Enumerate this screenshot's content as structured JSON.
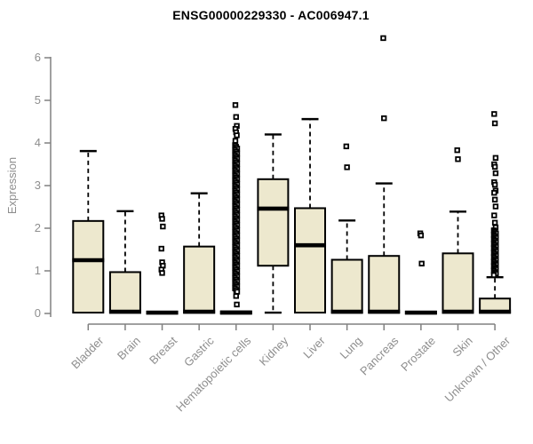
{
  "page": {
    "background": "#ffffff"
  },
  "chart_data": {
    "type": "boxplot",
    "title": "ENSG00000229330 - AC006947.1",
    "ylabel": "Expression",
    "xlabel": "",
    "ylim": [
      0,
      6.5
    ],
    "yticks": [
      0,
      1,
      2,
      3,
      4,
      5,
      6
    ],
    "grid": false,
    "legend": false,
    "colors": {
      "box_fill": "#EDE8CE",
      "box_stroke": "#000000",
      "median": "#000000",
      "whisker": "#000000",
      "outlier": "#000000",
      "axis": "#808080",
      "tick_label": "#8e8e8e",
      "title": "#000000"
    },
    "categories": [
      "Bladder",
      "Brain",
      "Breast",
      "Gastric",
      "Hematopoietic cells",
      "Kidney",
      "Liver",
      "Lung",
      "Pancreas",
      "Prostate",
      "Skin",
      "Unknown / Other"
    ],
    "series": [
      {
        "name": "Bladder",
        "whisker_low": 0.02,
        "q1": 0.02,
        "median": 1.25,
        "q3": 2.17,
        "whisker_high": 3.81,
        "outliers": []
      },
      {
        "name": "Brain",
        "whisker_low": 0.02,
        "q1": 0.02,
        "median": 0.04,
        "q3": 0.97,
        "whisker_high": 2.4,
        "outliers": []
      },
      {
        "name": "Breast",
        "whisker_low": 0.0,
        "q1": 0.0,
        "median": 0.02,
        "q3": 0.04,
        "whisker_high": 0.04,
        "outliers": [
          2.3,
          2.22,
          2.04,
          1.52,
          1.2,
          1.12,
          1.03,
          0.95
        ]
      },
      {
        "name": "Gastric",
        "whisker_low": 0.02,
        "q1": 0.02,
        "median": 0.04,
        "q3": 1.57,
        "whisker_high": 2.82,
        "outliers": []
      },
      {
        "name": "Hematopoietic cells",
        "whisker_low": 0.0,
        "q1": 0.0,
        "median": 0.02,
        "q3": 0.05,
        "whisker_high": 0.05,
        "outliers": [
          4.89,
          4.61,
          4.4,
          4.33,
          4.25,
          4.18,
          4.05,
          0.41,
          0.21
        ],
        "outlier_strip": {
          "min": 0.5,
          "max": 3.95,
          "step": 0.04
        }
      },
      {
        "name": "Kidney",
        "whisker_low": 0.02,
        "q1": 1.12,
        "median": 2.46,
        "q3": 3.15,
        "whisker_high": 4.2,
        "outliers": []
      },
      {
        "name": "Liver",
        "whisker_low": 0.02,
        "q1": 0.02,
        "median": 1.6,
        "q3": 2.47,
        "whisker_high": 4.56,
        "outliers": []
      },
      {
        "name": "Lung",
        "whisker_low": 0.02,
        "q1": 0.02,
        "median": 0.04,
        "q3": 1.26,
        "whisker_high": 2.18,
        "outliers": [
          3.92,
          3.43
        ]
      },
      {
        "name": "Pancreas",
        "whisker_low": 0.02,
        "q1": 0.02,
        "median": 0.04,
        "q3": 1.35,
        "whisker_high": 3.05,
        "outliers": [
          6.46,
          4.58
        ]
      },
      {
        "name": "Prostate",
        "whisker_low": 0.0,
        "q1": 0.0,
        "median": 0.02,
        "q3": 0.04,
        "whisker_high": 0.04,
        "outliers": [
          1.88,
          1.83,
          1.17
        ]
      },
      {
        "name": "Skin",
        "whisker_low": 0.02,
        "q1": 0.02,
        "median": 0.04,
        "q3": 1.41,
        "whisker_high": 2.39,
        "outliers": [
          3.83,
          3.62
        ]
      },
      {
        "name": "Unknown / Other",
        "whisker_low": 0.02,
        "q1": 0.02,
        "median": 0.04,
        "q3": 0.35,
        "whisker_high": 0.85,
        "outliers": [
          4.68,
          4.46,
          3.65,
          3.5,
          3.44,
          3.29,
          3.08,
          3.02,
          2.88,
          2.83,
          2.67,
          2.51,
          2.3,
          2.13,
          2.02
        ],
        "outlier_strip": {
          "min": 0.88,
          "max": 1.95,
          "step": 0.035
        }
      }
    ]
  }
}
